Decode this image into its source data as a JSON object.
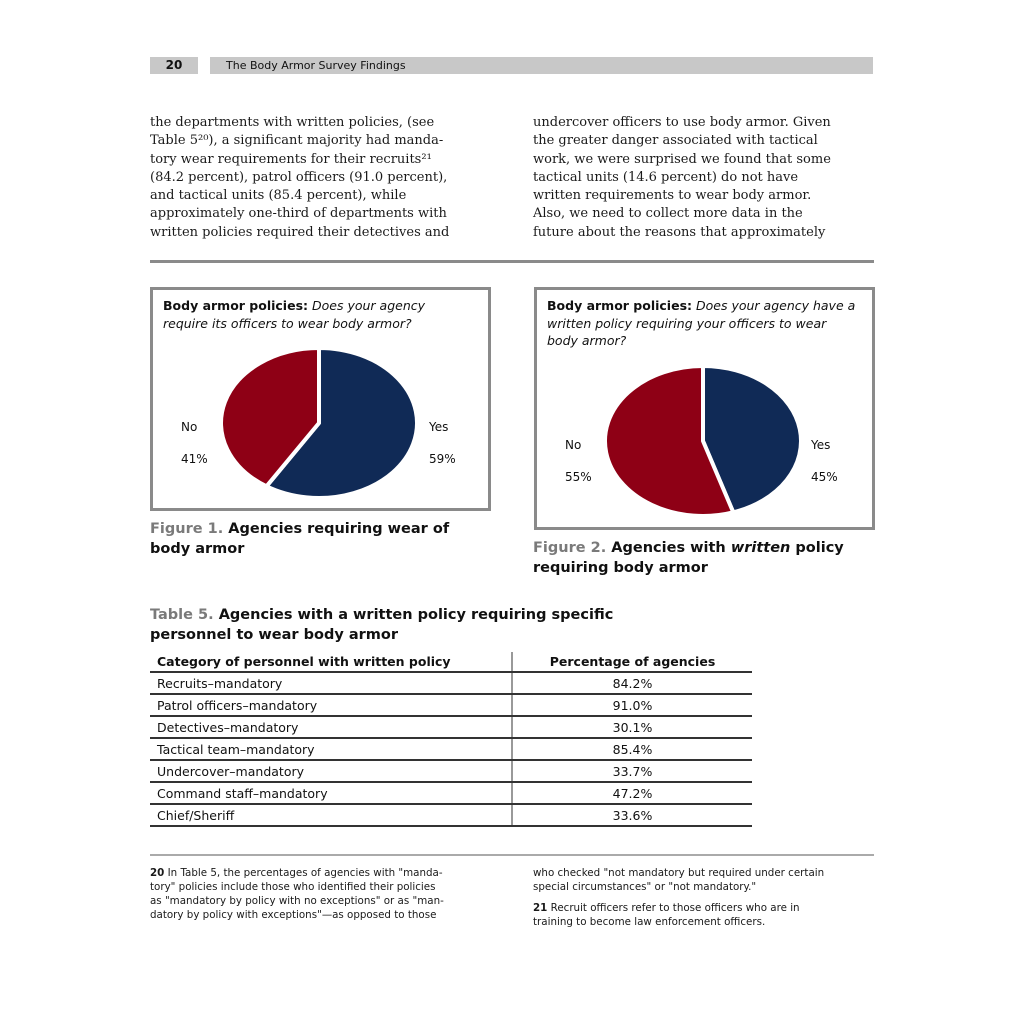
{
  "header": {
    "page_number": "20",
    "running_head": "The Body Armor Survey Findings"
  },
  "body": {
    "left": "the departments with written policies, (see\nTable 5²⁰), a significant majority had manda-\ntory wear requirements for their recruits²¹\n(84.2 percent), patrol officers (91.0 percent),\nand tactical units (85.4 percent), while\napproximately one-third of departments with\nwritten policies required their detectives and",
    "right": "undercover officers to use body armor. Given\nthe greater danger associated with tactical\nwork, we were surprised we found that some\ntactical units (14.6 percent) do not have\nwritten requirements to wear body armor.\nAlso, we need to collect more data in the\nfuture about the reasons that approximately"
  },
  "figure1": {
    "heading": "Body armor policies:",
    "question": "Does your agency require its officers to wear body armor?",
    "caption_label": "Figure 1.",
    "caption_text": "Agencies requiring wear of body armor"
  },
  "figure2": {
    "heading": "Body armor policies:",
    "question": "Does your agency have a written policy requiring your officers to wear body armor?",
    "caption_label": "Figure 2.",
    "caption_pre": "Agencies with",
    "caption_em": "written",
    "caption_post": "policy requiring body armor"
  },
  "chart_data": [
    {
      "type": "pie",
      "title": "Body armor policies: Does your agency require its officers to wear body armor?",
      "slices": [
        {
          "name": "Yes",
          "value": 59,
          "label": "59%",
          "color": "#102a56"
        },
        {
          "name": "No",
          "value": 41,
          "label": "41%",
          "color": "#8e0015"
        }
      ]
    },
    {
      "type": "pie",
      "title": "Body armor policies: Does your agency have a written policy requiring your officers to wear body armor?",
      "slices": [
        {
          "name": "Yes",
          "value": 45,
          "label": "45%",
          "color": "#102a56"
        },
        {
          "name": "No",
          "value": 55,
          "label": "55%",
          "color": "#8e0015"
        }
      ]
    }
  ],
  "table5": {
    "caption_label": "Table 5.",
    "caption_text": "Agencies with a written policy requiring specific personnel to wear body armor",
    "headers": [
      "Category of personnel with written policy",
      "Percentage of agencies"
    ],
    "rows": [
      [
        "Recruits–mandatory",
        "84.2%"
      ],
      [
        "Patrol officers–mandatory",
        "91.0%"
      ],
      [
        "Detectives–mandatory",
        "30.1%"
      ],
      [
        "Tactical team–mandatory",
        "85.4%"
      ],
      [
        "Undercover–mandatory",
        "33.7%"
      ],
      [
        "Command staff–mandatory",
        "47.2%"
      ],
      [
        "Chief/Sheriff",
        "33.6%"
      ]
    ]
  },
  "footnotes": {
    "fn20_num": "20",
    "fn20_text": "In Table 5, the percentages of agencies with \"manda-\ntory\" policies include those who identified their policies\nas \"mandatory by policy with no exceptions\" or as \"man-\ndatory by policy with exceptions\"—as opposed to those",
    "fn20_cont": "who checked \"not mandatory but required under certain\nspecial circumstances\" or \"not mandatory.\"",
    "fn21_num": "21",
    "fn21_text": "Recruit officers refer to those officers who are in\ntraining to become law enforcement officers."
  }
}
